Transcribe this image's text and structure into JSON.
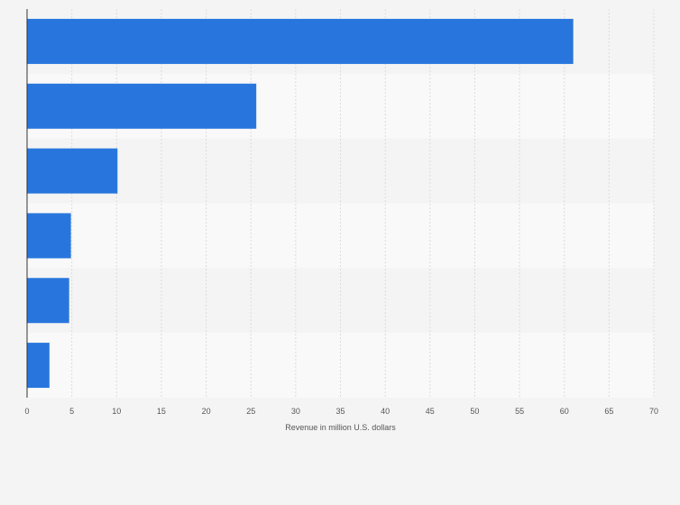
{
  "chart_data": {
    "type": "bar",
    "orientation": "horizontal",
    "categories": [
      "",
      "",
      "",
      "",
      "",
      ""
    ],
    "values": [
      61.0,
      25.6,
      10.1,
      4.9,
      4.7,
      2.5
    ],
    "xlabel": "Revenue in million U.S. dollars",
    "ylabel": "",
    "xlim": [
      0,
      70
    ],
    "xticks": [
      "0",
      "5",
      "10",
      "15",
      "20",
      "25",
      "30",
      "35",
      "40",
      "45",
      "50",
      "55",
      "60",
      "65",
      "70"
    ],
    "grid": "vertical dashed",
    "bar_color": "#2876dd",
    "band_colors": [
      "#f4f4f4",
      "#f9f9f9"
    ]
  }
}
